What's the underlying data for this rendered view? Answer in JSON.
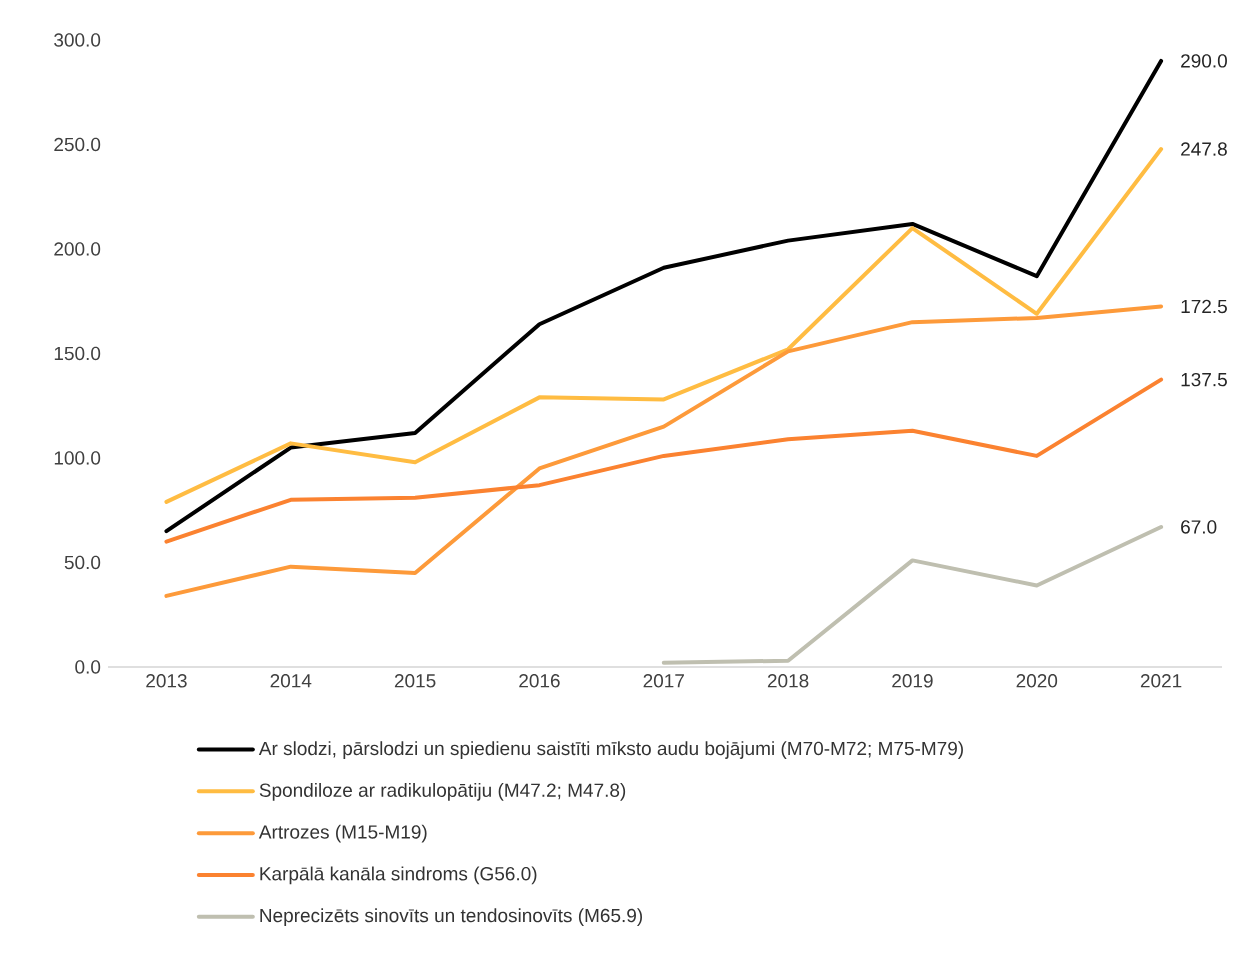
{
  "chart_data": {
    "type": "line",
    "categories": [
      "2013",
      "2014",
      "2015",
      "2016",
      "2017",
      "2018",
      "2019",
      "2020",
      "2021"
    ],
    "ylim": [
      0,
      300
    ],
    "yticks": [
      {
        "value": 0,
        "label": "0.0"
      },
      {
        "value": 50,
        "label": "50.0"
      },
      {
        "value": 100,
        "label": "100.0"
      },
      {
        "value": 150,
        "label": "150.0"
      },
      {
        "value": 200,
        "label": "200.0"
      },
      {
        "value": 250,
        "label": "250.0"
      },
      {
        "value": 300,
        "label": "300.0"
      }
    ],
    "grid": false,
    "legend": "bottom",
    "marker": "none",
    "line_style": "solid",
    "series": [
      {
        "name": "Ar slodzi, pārslodzi un spiedienu saistīti mīksto audu bojājumi (M70-M72; M75-M79)",
        "color": "#000000",
        "values": [
          65,
          105,
          112,
          164,
          191,
          204,
          212,
          187,
          290.0
        ],
        "value_labels": [
          null,
          null,
          null,
          null,
          null,
          null,
          null,
          null,
          "290.0"
        ]
      },
      {
        "name": "Spondiloze ar radikulopātiju (M47.2; M47.8)",
        "color": "#ffbc42",
        "values": [
          79,
          107,
          98,
          129,
          128,
          152,
          210,
          169,
          247.8
        ],
        "value_labels": [
          null,
          null,
          null,
          null,
          null,
          null,
          null,
          null,
          "247.8"
        ]
      },
      {
        "name": "Artrozes (M15-M19)",
        "color": "#fd9a3a",
        "values": [
          34,
          48,
          45,
          95,
          115,
          151,
          165,
          167,
          172.5
        ],
        "value_labels": [
          null,
          null,
          null,
          null,
          null,
          null,
          null,
          null,
          "172.5"
        ]
      },
      {
        "name": "Karpālā kanāla sindroms (G56.0)",
        "color": "#fb8230",
        "values": [
          60,
          80,
          81,
          87,
          101,
          109,
          113,
          101,
          137.5
        ],
        "value_labels": [
          null,
          null,
          null,
          null,
          null,
          null,
          null,
          null,
          "137.5"
        ]
      },
      {
        "name": "Neprecizēts sinovīts un tendosinovīts (M65.9)",
        "color": "#bfbfb0",
        "values": [
          null,
          null,
          null,
          null,
          2,
          3,
          51,
          39,
          67.0
        ],
        "value_labels": [
          null,
          null,
          null,
          null,
          null,
          null,
          null,
          null,
          "67.0"
        ]
      }
    ]
  }
}
